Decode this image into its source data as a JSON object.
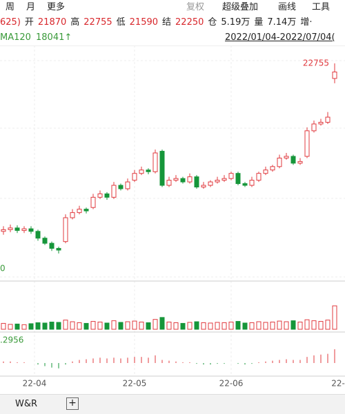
{
  "toolbar": {
    "left": [
      "周",
      "月",
      "更多"
    ],
    "right": [
      "复权",
      "超级叠加",
      "画线",
      "工具"
    ]
  },
  "quote": {
    "fragment": "625)",
    "items": [
      {
        "label": "开",
        "value": "21870"
      },
      {
        "label": "高",
        "value": "22755"
      },
      {
        "label": "低",
        "value": "21590"
      },
      {
        "label": "结",
        "value": "22250"
      },
      {
        "label": "仓",
        "value": "5.19万"
      },
      {
        "label": "量",
        "value": "7.14万"
      }
    ],
    "tail": "增·"
  },
  "indicator": {
    "name": "MA120",
    "value": "18041↑"
  },
  "date_range": "2022/01/04-2022/07/04(",
  "chart_data": {
    "type": "candlestick",
    "open": [
      12900,
      13000,
      13100,
      12950,
      13050,
      12900,
      12500,
      12200,
      11900,
      12300,
      13700,
      14000,
      14200,
      14300,
      14900,
      15100,
      14900,
      15600,
      15400,
      15900,
      16300,
      16500,
      16400,
      17600,
      15600,
      15900,
      16000,
      15800,
      16100,
      15500,
      15600,
      15800,
      15900,
      16000,
      16300,
      15700,
      15600,
      15900,
      16300,
      16500,
      16700,
      17200,
      17300,
      16900,
      17300,
      18800,
      19200,
      19300,
      21870
    ],
    "high": [
      13200,
      13300,
      13250,
      13200,
      13200,
      13000,
      12600,
      12300,
      12000,
      13900,
      14200,
      14400,
      14300,
      15100,
      15300,
      15200,
      15800,
      15700,
      16000,
      16500,
      16700,
      16600,
      17700,
      17700,
      16100,
      16200,
      16100,
      16300,
      16200,
      15800,
      15900,
      16100,
      16200,
      16400,
      16400,
      15800,
      16100,
      16400,
      16700,
      16800,
      17400,
      17500,
      17400,
      17200,
      19000,
      19400,
      19500,
      19900,
      22755
    ],
    "low": [
      12700,
      12850,
      12800,
      12800,
      12750,
      12350,
      12100,
      11750,
      11600,
      12200,
      13600,
      13900,
      13950,
      14200,
      14800,
      14750,
      14800,
      15300,
      15300,
      15800,
      16200,
      16250,
      16300,
      15500,
      15500,
      15800,
      15700,
      15700,
      15400,
      15400,
      15500,
      15700,
      15800,
      15900,
      15600,
      15500,
      15500,
      15800,
      16200,
      16400,
      16600,
      17100,
      16800,
      16800,
      17200,
      18700,
      19100,
      19200,
      21590
    ],
    "close": [
      13000,
      13100,
      12950,
      13050,
      12900,
      12500,
      12200,
      11900,
      11800,
      13700,
      14000,
      14200,
      14100,
      14900,
      15100,
      14900,
      15600,
      15400,
      15800,
      16300,
      16500,
      16400,
      17500,
      15600,
      15900,
      16000,
      15800,
      16100,
      15500,
      15600,
      15800,
      15900,
      16000,
      16300,
      15700,
      15600,
      15900,
      16300,
      16500,
      16700,
      17200,
      17300,
      16900,
      17000,
      18800,
      19200,
      19300,
      19600,
      22250
    ],
    "color_up": "#e0393e",
    "color_down": "#16963a",
    "axis_fragment": "0",
    "volume": [
      1.8,
      1.5,
      1.6,
      1.4,
      1.7,
      2.0,
      1.9,
      2.2,
      2.1,
      2.8,
      2.3,
      2.0,
      1.8,
      2.4,
      2.2,
      1.9,
      2.6,
      2.1,
      2.3,
      2.5,
      2.2,
      2.0,
      3.0,
      3.6,
      2.2,
      2.0,
      1.8,
      2.1,
      2.3,
      2.0,
      1.9,
      2.1,
      2.0,
      2.2,
      2.4,
      1.9,
      2.0,
      2.3,
      2.1,
      2.2,
      2.5,
      2.3,
      2.6,
      2.2,
      2.9,
      2.6,
      2.4,
      2.8,
      7.14
    ],
    "macd_label": ".2956",
    "macd": [
      0.1,
      0.1,
      0.05,
      0.05,
      0,
      -0.1,
      -0.2,
      -0.3,
      -0.35,
      -0.1,
      0.1,
      0.2,
      0.25,
      0.3,
      0.35,
      0.3,
      0.35,
      0.3,
      0.35,
      0.4,
      0.4,
      0.35,
      0.5,
      0.2,
      0.15,
      0.1,
      0.05,
      0.05,
      -0.05,
      -0.1,
      -0.1,
      -0.05,
      -0.05,
      0,
      -0.05,
      -0.1,
      -0.05,
      0.05,
      0.1,
      0.15,
      0.2,
      0.25,
      0.2,
      0.2,
      0.4,
      0.5,
      0.55,
      0.6,
      0.9
    ],
    "x_labels": [
      "22-04",
      "22-05",
      "22-06",
      "22-"
    ]
  },
  "tabs": [
    "W&R"
  ]
}
